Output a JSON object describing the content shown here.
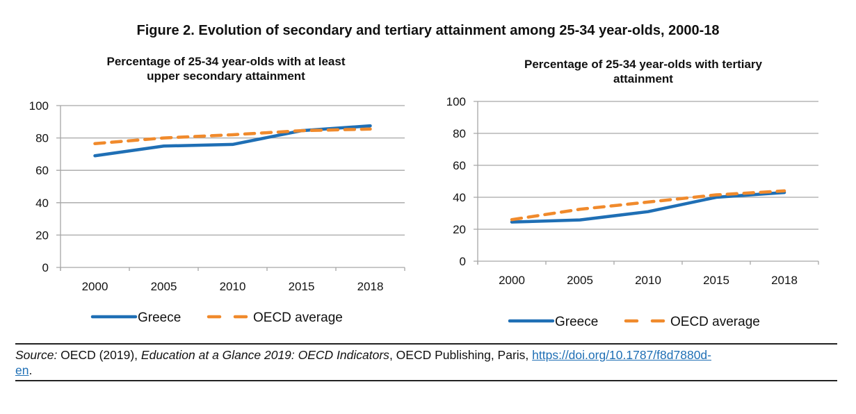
{
  "figure_title": "Figure 2. Evolution of secondary and tertiary attainment among 25-34 year-olds, 2000-18",
  "colors": {
    "greece": "#1f6fb5",
    "oecd": "#f08a2c",
    "grid": "#a6a6a6",
    "link": "#1f6fb5"
  },
  "chart_data": [
    {
      "type": "line",
      "title": "Percentage of 25-34 year-olds with at least upper secondary attainment",
      "title_lines": [
        "Percentage of 25-34 year-olds with at least",
        "upper secondary attainment"
      ],
      "categories": [
        "2000",
        "2005",
        "2010",
        "2015",
        "2018"
      ],
      "series": [
        {
          "name": "Greece",
          "style": "solid",
          "values": [
            69,
            75,
            76,
            84.5,
            87.5
          ]
        },
        {
          "name": "OECD average",
          "style": "dashed",
          "values": [
            76.5,
            80,
            82,
            84.5,
            85.5
          ]
        }
      ],
      "yticks": [
        "0",
        "20",
        "40",
        "60",
        "80",
        "100"
      ],
      "ylim": [
        0,
        100
      ],
      "xlabel": "",
      "ylabel": "",
      "grid": true,
      "legend": "bottom"
    },
    {
      "type": "line",
      "title": "Percentage of 25-34 year-olds with tertiary attainment",
      "title_lines": [
        "Percentage of 25-34 year-olds with tertiary",
        "attainment"
      ],
      "categories": [
        "2000",
        "2005",
        "2010",
        "2015",
        "2018"
      ],
      "series": [
        {
          "name": "Greece",
          "style": "solid",
          "values": [
            24.5,
            25.8,
            31,
            40,
            43
          ]
        },
        {
          "name": "OECD average",
          "style": "dashed",
          "values": [
            26,
            32.5,
            37,
            41.5,
            44
          ]
        }
      ],
      "yticks": [
        "0",
        "20",
        "40",
        "60",
        "80",
        "100"
      ],
      "ylim": [
        0,
        100
      ],
      "xlabel": "",
      "ylabel": "",
      "grid": true,
      "legend": "bottom"
    }
  ],
  "source": {
    "label": "Source:",
    "text1": " OECD (2019), ",
    "publication": "Education at a Glance 2019: OECD Indicators",
    "text2": ", OECD Publishing, Paris, ",
    "link_line1": "https://doi.org/10.1787/f8d7880d-",
    "link_line2": "en",
    "end": "."
  }
}
